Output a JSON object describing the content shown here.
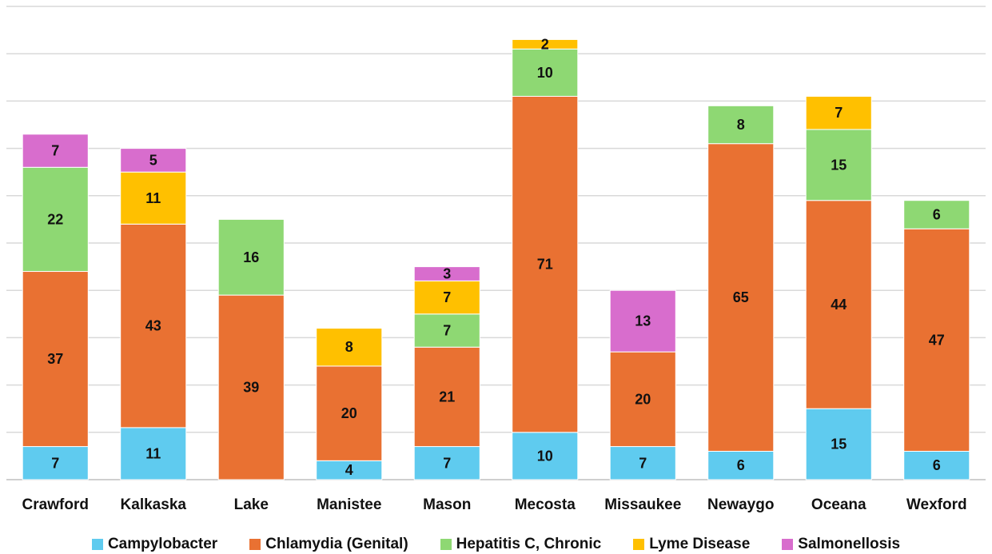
{
  "chart_data": {
    "type": "bar",
    "stacked": true,
    "title": "",
    "xlabel": "",
    "ylabel": "",
    "ylim": [
      0,
      100
    ],
    "grid": true,
    "legend_position": "bottom",
    "categories": [
      "Crawford",
      "Kalkaska",
      "Lake",
      "Manistee",
      "Mason",
      "Mecosta",
      "Missaukee",
      "Newaygo",
      "Oceana",
      "Wexford"
    ],
    "series": [
      {
        "name": "Campylobacter",
        "color": "#5FCBEF",
        "values": [
          7,
          11,
          null,
          4,
          7,
          10,
          7,
          6,
          15,
          6
        ]
      },
      {
        "name": "Chlamydia (Genital)",
        "color": "#E97132",
        "values": [
          37,
          43,
          39,
          20,
          21,
          71,
          20,
          65,
          44,
          47
        ]
      },
      {
        "name": "Hepatitis C, Chronic",
        "color": "#8ED873",
        "values": [
          22,
          null,
          16,
          null,
          7,
          10,
          null,
          8,
          15,
          6
        ]
      },
      {
        "name": "Lyme Disease",
        "color": "#FFC000",
        "values": [
          null,
          11,
          null,
          8,
          7,
          2,
          null,
          null,
          7,
          null
        ]
      },
      {
        "name": "Salmonellosis",
        "color": "#D86DCD",
        "values": [
          7,
          5,
          null,
          null,
          3,
          null,
          13,
          null,
          null,
          null
        ]
      }
    ]
  }
}
